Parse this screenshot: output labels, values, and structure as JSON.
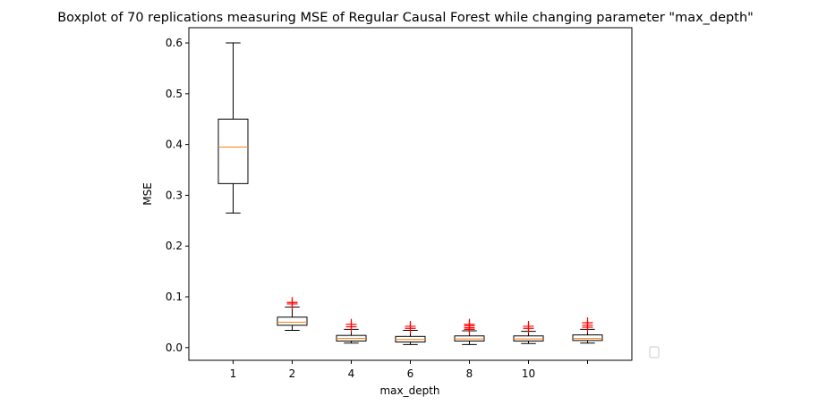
{
  "chart_data": {
    "type": "boxplot",
    "title": "Boxplot of 70 replications measuring MSE of Regular Causal Forest while changing parameter \"max_depth\"",
    "xlabel": "max_depth",
    "ylabel": "MSE",
    "ylim": [
      -0.025,
      0.63
    ],
    "yticks": [
      0.0,
      0.1,
      0.2,
      0.3,
      0.4,
      0.5,
      0.6
    ],
    "ytick_labels": [
      "0.0",
      "0.1",
      "0.2",
      "0.3",
      "0.4",
      "0.5",
      "0.6"
    ],
    "xtick_labels": [
      "1",
      "2",
      "4",
      "6",
      "8",
      "10",
      ""
    ],
    "legend": {
      "placement": "outside-bottom-right",
      "entries": []
    },
    "grid": false,
    "colors": {
      "box": "#000000",
      "median": "#ff7f0e",
      "outlier": "#ff0000"
    },
    "boxes": [
      {
        "min": 0.265,
        "q1": 0.323,
        "median": 0.395,
        "q3": 0.45,
        "max": 0.6,
        "outliers": []
      },
      {
        "min": 0.034,
        "q1": 0.044,
        "median": 0.05,
        "q3": 0.06,
        "max": 0.08,
        "outliers": [
          0.086,
          0.089
        ]
      },
      {
        "min": 0.009,
        "q1": 0.013,
        "median": 0.018,
        "q3": 0.024,
        "max": 0.036,
        "outliers": [
          0.041,
          0.046
        ]
      },
      {
        "min": 0.006,
        "q1": 0.011,
        "median": 0.016,
        "q3": 0.022,
        "max": 0.034,
        "outliers": [
          0.038,
          0.042
        ]
      },
      {
        "min": 0.006,
        "q1": 0.013,
        "median": 0.017,
        "q3": 0.023,
        "max": 0.033,
        "outliers": [
          0.036,
          0.039,
          0.043,
          0.046
        ]
      },
      {
        "min": 0.008,
        "q1": 0.013,
        "median": 0.017,
        "q3": 0.023,
        "max": 0.032,
        "outliers": [
          0.038,
          0.042
        ]
      },
      {
        "min": 0.009,
        "q1": 0.014,
        "median": 0.018,
        "q3": 0.025,
        "max": 0.036,
        "outliers": [
          0.04,
          0.044,
          0.049
        ]
      }
    ]
  }
}
